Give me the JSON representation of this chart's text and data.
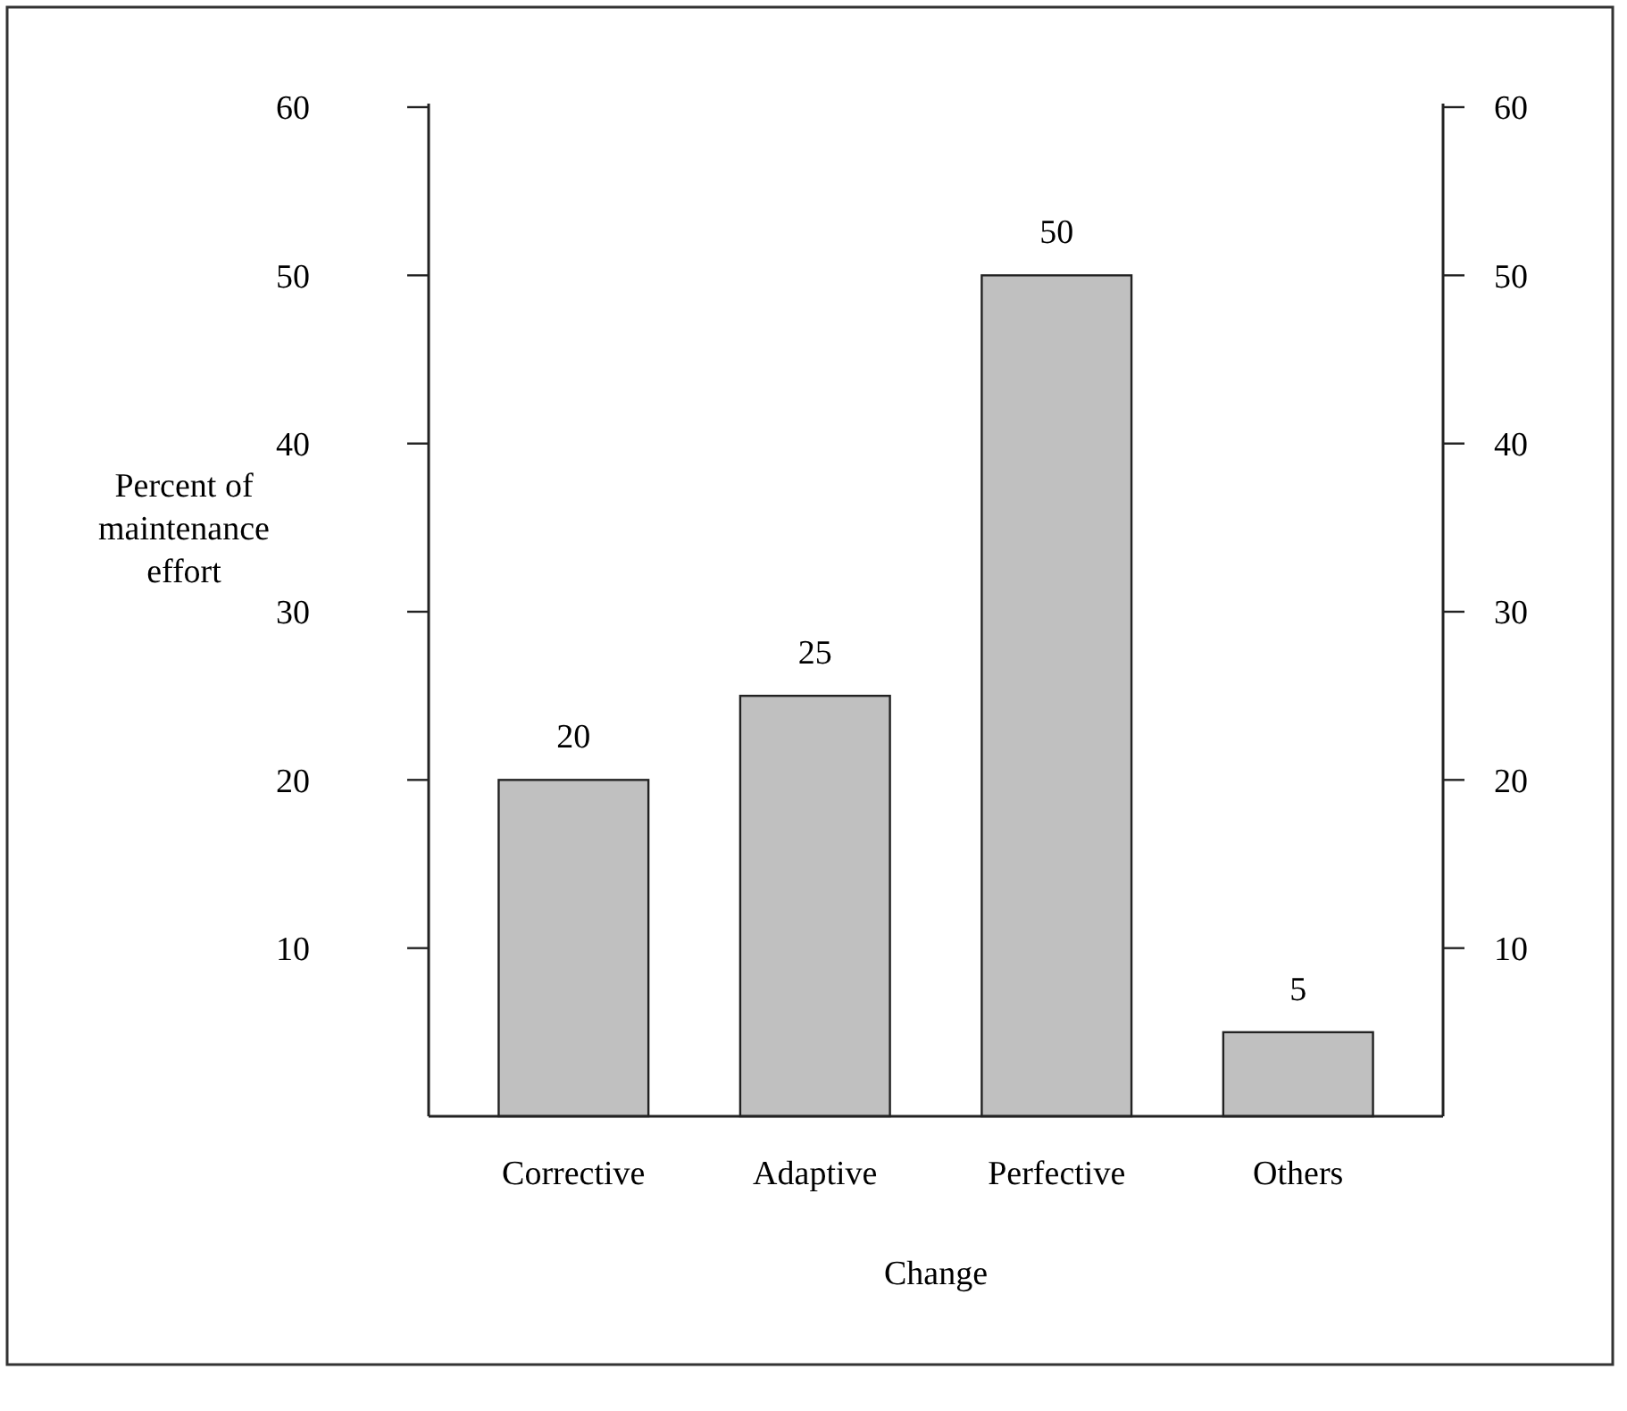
{
  "chart_data": {
    "type": "bar",
    "xlabel": "Change",
    "ylabel": "Percent of maintenance effort",
    "categories": [
      "Corrective",
      "Adaptive",
      "Perfective",
      "Others"
    ],
    "values": [
      20,
      25,
      50,
      5
    ],
    "color": "#c0c0c0",
    "data_labels": true,
    "ylim": [
      0,
      60
    ],
    "yticks": [
      10,
      20,
      30,
      40,
      50,
      60
    ],
    "y2lim": [
      0,
      60
    ],
    "y2ticks": [
      10,
      20,
      30,
      40,
      50,
      60
    ]
  }
}
